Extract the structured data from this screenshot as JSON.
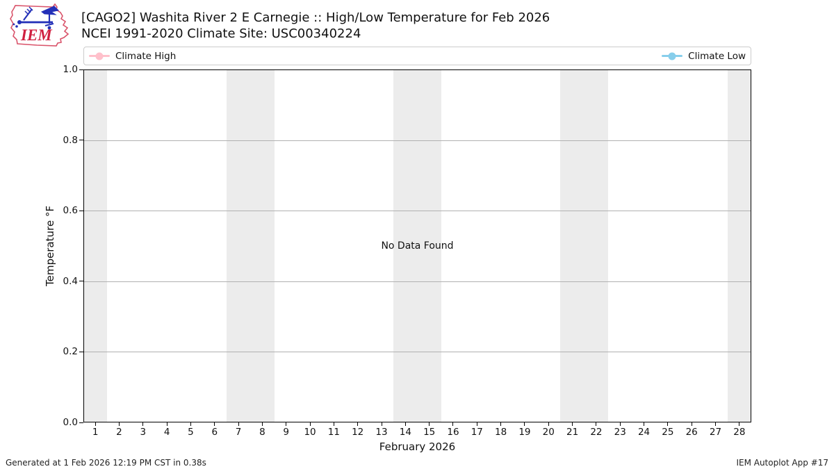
{
  "logo": {
    "text": "IEM"
  },
  "header": {
    "title": "[CAGO2] Washita River 2 E Carnegie :: High/Low Temperature for Feb 2026",
    "subtitle": "NCEI 1991-2020 Climate Site: USC00340224"
  },
  "legend": {
    "high_label": "Climate High",
    "low_label": "Climate Low"
  },
  "chart": {
    "no_data_text": "No Data Found",
    "y_axis_label": "Temperature °F",
    "x_axis_label": "February 2026"
  },
  "footer": {
    "generated": "Generated at 1 Feb 2026 12:19 PM CST in 0.38s",
    "app": "IEM Autoplot App #17"
  },
  "chart_data": {
    "type": "line",
    "title": "[CAGO2] Washita River 2 E Carnegie :: High/Low Temperature for Feb 2026",
    "subtitle": "NCEI 1991-2020 Climate Site: USC00340224",
    "xlabel": "February 2026",
    "ylabel": "Temperature °F",
    "xlim": [
      0.5,
      28.5
    ],
    "ylim": [
      0.0,
      1.0
    ],
    "x_ticks": [
      1,
      2,
      3,
      4,
      5,
      6,
      7,
      8,
      9,
      10,
      11,
      12,
      13,
      14,
      15,
      16,
      17,
      18,
      19,
      20,
      21,
      22,
      23,
      24,
      25,
      26,
      27,
      28
    ],
    "y_ticks": [
      0.0,
      0.2,
      0.4,
      0.6,
      0.8,
      1.0
    ],
    "grid": "horizontal",
    "gridline_color": "#b0b0b0",
    "band_color": "#ececec",
    "weekend_bands_x": [
      [
        0.5,
        1.5
      ],
      [
        6.5,
        8.5
      ],
      [
        13.5,
        15.5
      ],
      [
        20.5,
        22.5
      ],
      [
        27.5,
        28.5
      ]
    ],
    "legend_position": "top full-width; high at left, low at right",
    "series": [
      {
        "name": "Climate High",
        "color": "#FFC0CB",
        "x": [],
        "values": []
      },
      {
        "name": "Climate Low",
        "color": "#87CEEB",
        "x": [],
        "values": []
      }
    ],
    "annotations": [
      {
        "text": "No Data Found",
        "x": 14.5,
        "y": 0.5
      }
    ]
  }
}
